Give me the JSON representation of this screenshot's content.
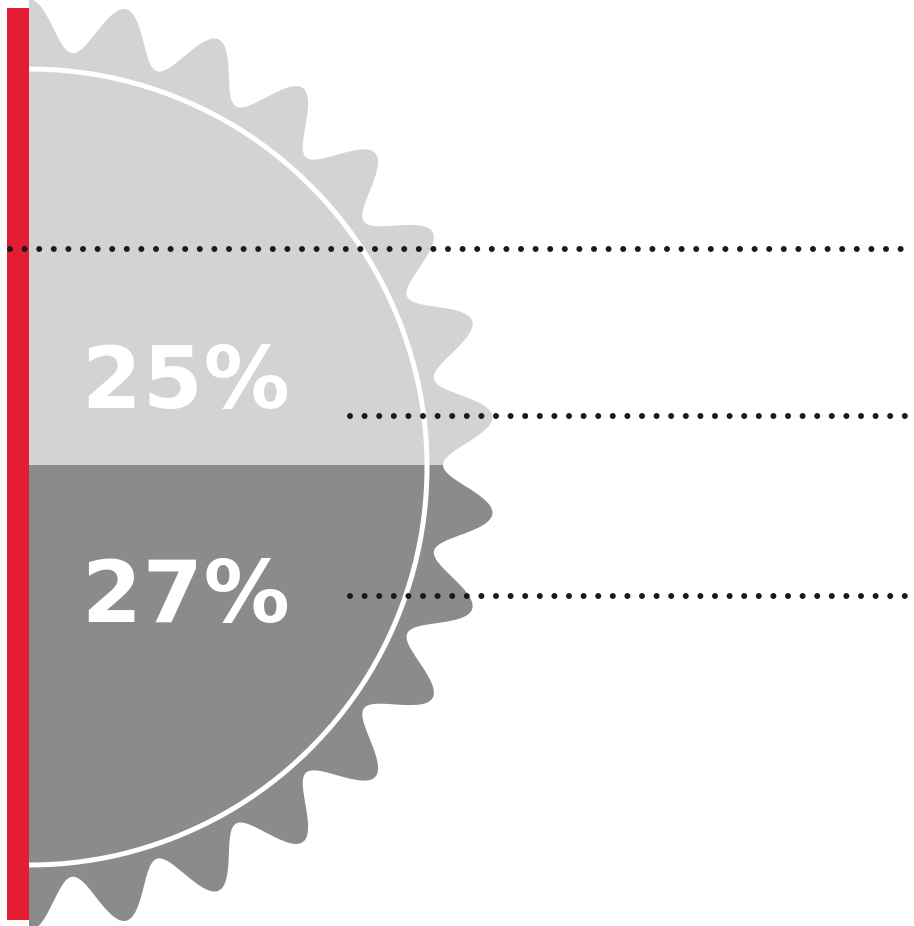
{
  "chart_data": {
    "type": "pie",
    "orientation": "half-circle",
    "segments": [
      {
        "label": "25%",
        "value": 25,
        "color": "#d3d3d3"
      },
      {
        "label": "27%",
        "value": 27,
        "color": "#8a8c89"
      }
    ]
  },
  "colors": {
    "accent_bar": "#e41d34",
    "leader_dots": "#1a1a1a",
    "outline": "#ffffff",
    "background": "#ffffff"
  }
}
